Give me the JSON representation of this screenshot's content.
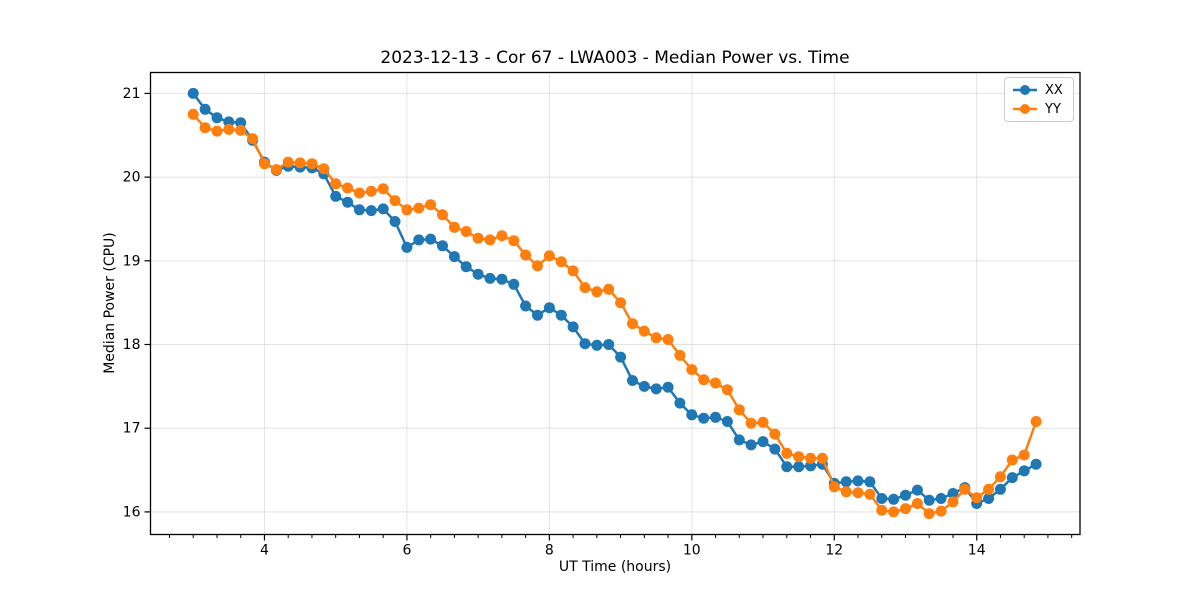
{
  "chart_data": {
    "type": "line",
    "title": "2023-12-13 - Cor 67 - LWA003 - Median Power vs. Time",
    "xlabel": "UT Time (hours)",
    "ylabel": "Median Power (CPU)",
    "xlim": [
      2.4,
      15.45
    ],
    "ylim": [
      15.73,
      21.25
    ],
    "x_ticks": [
      4,
      6,
      8,
      10,
      12,
      14
    ],
    "y_ticks": [
      16,
      17,
      18,
      19,
      20,
      21
    ],
    "x_minor_tick_step": 0.33333,
    "grid": true,
    "grid_color": "#e3e3e3",
    "legend_position": "upper right",
    "x": [
      3.0,
      3.167,
      3.333,
      3.5,
      3.667,
      3.833,
      4.0,
      4.167,
      4.333,
      4.5,
      4.667,
      4.833,
      5.0,
      5.167,
      5.333,
      5.5,
      5.667,
      5.833,
      6.0,
      6.167,
      6.333,
      6.5,
      6.667,
      6.833,
      7.0,
      7.167,
      7.333,
      7.5,
      7.667,
      7.833,
      8.0,
      8.167,
      8.333,
      8.5,
      8.667,
      8.833,
      9.0,
      9.167,
      9.333,
      9.5,
      9.667,
      9.833,
      10.0,
      10.167,
      10.333,
      10.5,
      10.667,
      10.833,
      11.0,
      11.167,
      11.333,
      11.5,
      11.667,
      11.833,
      12.0,
      12.167,
      12.333,
      12.5,
      12.667,
      12.833,
      13.0,
      13.167,
      13.333,
      13.5,
      13.667,
      13.833,
      14.0,
      14.167,
      14.333,
      14.5,
      14.667,
      14.833
    ],
    "series": [
      {
        "name": "XX",
        "color": "#1f77b4",
        "values": [
          21.0,
          20.81,
          20.71,
          20.66,
          20.65,
          20.44,
          20.18,
          20.08,
          20.13,
          20.12,
          20.11,
          20.04,
          19.77,
          19.7,
          19.61,
          19.6,
          19.62,
          19.47,
          19.16,
          19.25,
          19.26,
          19.18,
          19.05,
          18.93,
          18.84,
          18.79,
          18.78,
          18.72,
          18.46,
          18.35,
          18.44,
          18.35,
          18.21,
          18.01,
          17.99,
          18.0,
          17.85,
          17.57,
          17.5,
          17.47,
          17.49,
          17.3,
          17.16,
          17.12,
          17.13,
          17.08,
          16.86,
          16.8,
          16.84,
          16.75,
          16.54,
          16.54,
          16.55,
          16.57,
          16.34,
          16.36,
          16.37,
          16.36,
          16.16,
          16.15,
          16.2,
          16.26,
          16.14,
          16.16,
          16.22,
          16.29,
          16.1,
          16.16,
          16.27,
          16.41,
          16.49,
          16.57
        ]
      },
      {
        "name": "YY",
        "color": "#ff7f0e",
        "values": [
          20.75,
          20.59,
          20.55,
          20.57,
          20.56,
          20.46,
          20.16,
          20.09,
          20.18,
          20.17,
          20.16,
          20.1,
          19.92,
          19.87,
          19.81,
          19.83,
          19.86,
          19.72,
          19.61,
          19.63,
          19.67,
          19.55,
          19.4,
          19.35,
          19.27,
          19.25,
          19.3,
          19.24,
          19.07,
          18.94,
          19.06,
          18.99,
          18.88,
          18.68,
          18.63,
          18.66,
          18.5,
          18.25,
          18.16,
          18.08,
          18.06,
          17.87,
          17.7,
          17.58,
          17.54,
          17.46,
          17.22,
          17.06,
          17.07,
          16.93,
          16.7,
          16.66,
          16.64,
          16.64,
          16.3,
          16.24,
          16.23,
          16.21,
          16.02,
          16.0,
          16.04,
          16.1,
          15.98,
          16.01,
          16.12,
          16.27,
          16.17,
          16.27,
          16.42,
          16.62,
          16.68,
          17.08
        ]
      }
    ]
  }
}
